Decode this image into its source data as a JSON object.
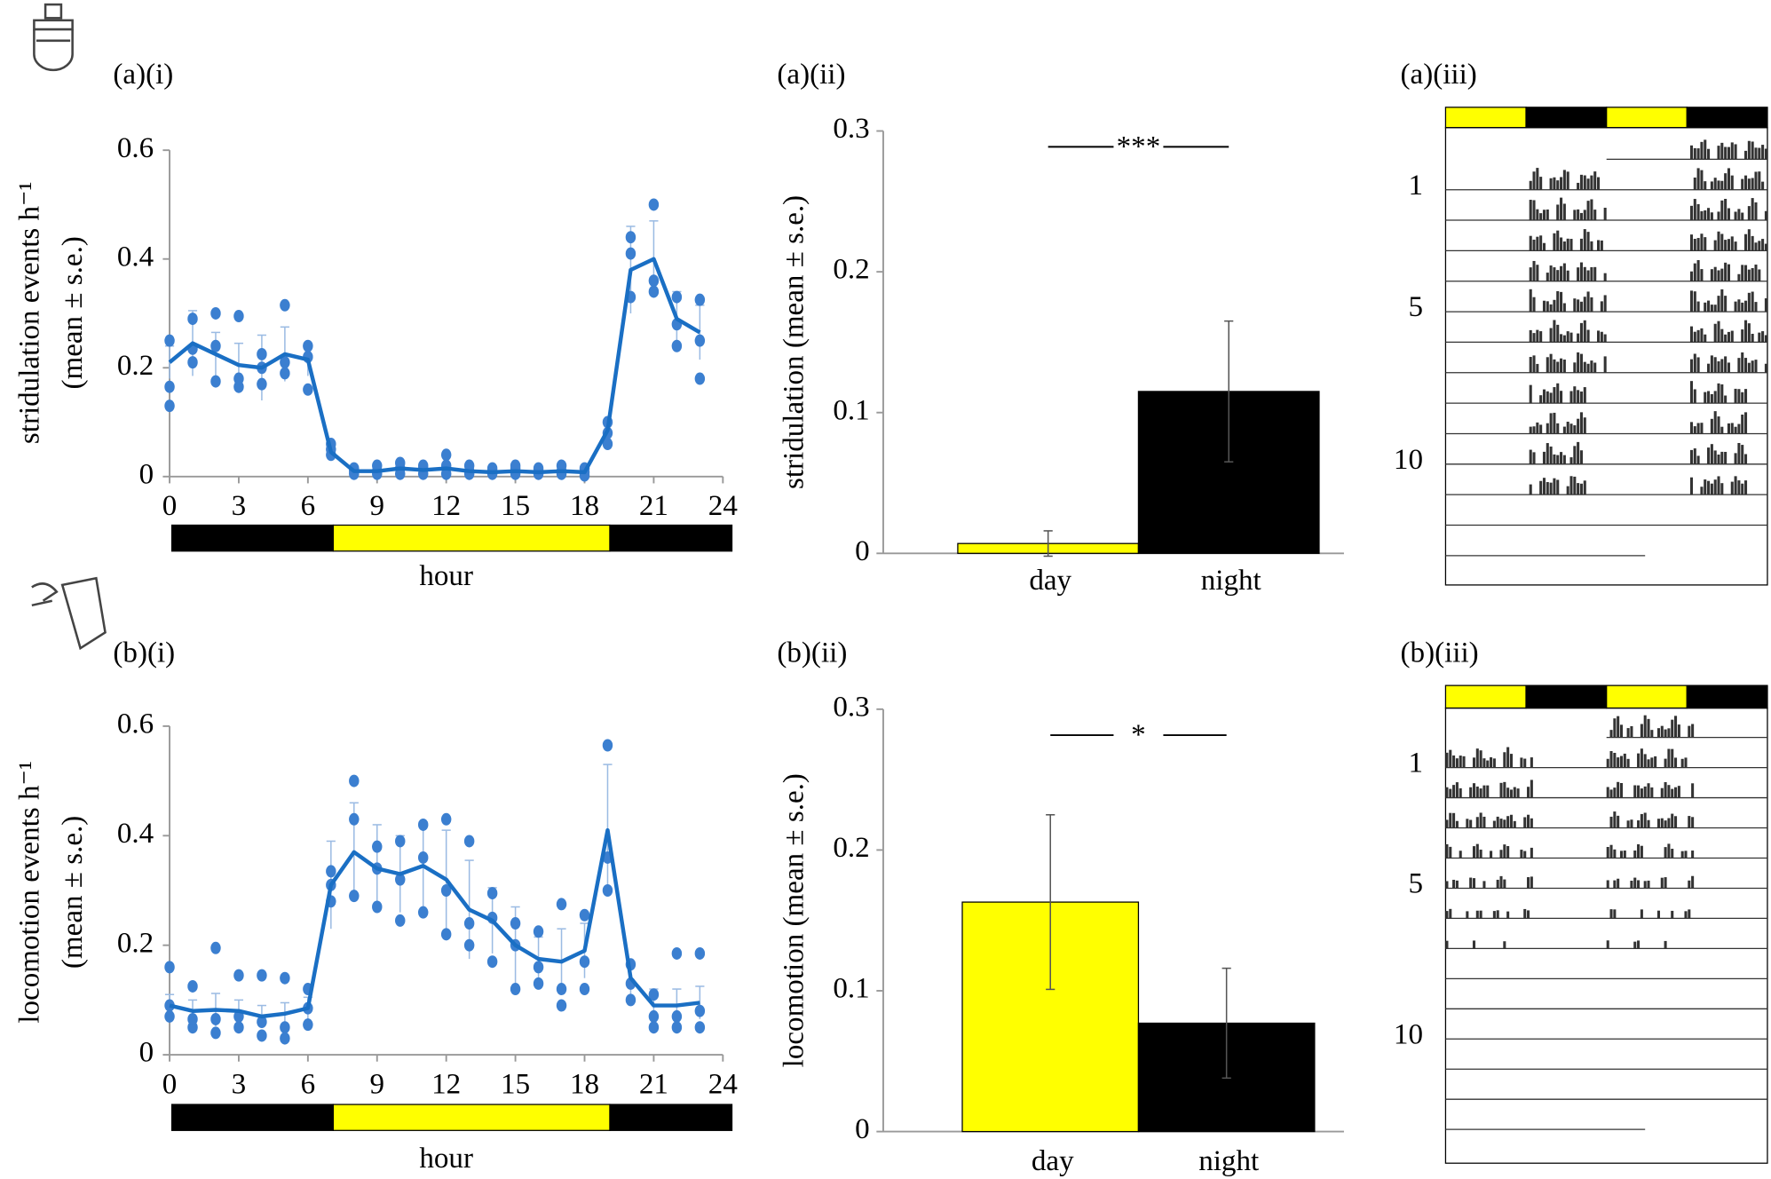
{
  "chart_data": [
    {
      "type": "line",
      "label": "(a)(i)",
      "ylabel": [
        "stridulation events h⁻¹",
        "(mean ± s.e.)"
      ],
      "xlabel": "hour",
      "x": [
        0,
        1,
        2,
        3,
        4,
        5,
        6,
        7,
        8,
        9,
        10,
        11,
        12,
        13,
        14,
        15,
        16,
        17,
        18,
        19,
        20,
        21,
        22,
        23
      ],
      "values": [
        0.21,
        0.245,
        0.225,
        0.205,
        0.2,
        0.225,
        0.215,
        0.045,
        0.01,
        0.01,
        0.015,
        0.012,
        0.015,
        0.01,
        0.008,
        0.01,
        0.008,
        0.01,
        0.008,
        0.085,
        0.38,
        0.4,
        0.29,
        0.265
      ],
      "errors": [
        0.03,
        0.06,
        0.04,
        0.04,
        0.06,
        0.05,
        0.03,
        0.01,
        0.005,
        0.005,
        0.005,
        0.005,
        0.01,
        0.005,
        0.005,
        0.005,
        0.005,
        0.005,
        0.005,
        0.02,
        0.08,
        0.07,
        0.05,
        0.05
      ],
      "points": [
        [
          0.13,
          0.165,
          0.25
        ],
        [
          0.21,
          0.235,
          0.29
        ],
        [
          0.175,
          0.24,
          0.3
        ],
        [
          0.165,
          0.18,
          0.295
        ],
        [
          0.17,
          0.2,
          0.225
        ],
        [
          0.19,
          0.21,
          0.315
        ],
        [
          0.16,
          0.22,
          0.24
        ],
        [
          0.04,
          0.05,
          0.06
        ],
        [
          0.005,
          0.01,
          0.015
        ],
        [
          0.005,
          0.01,
          0.02
        ],
        [
          0.005,
          0.015,
          0.025
        ],
        [
          0.005,
          0.015,
          0.02
        ],
        [
          0.005,
          0.02,
          0.04
        ],
        [
          0.005,
          0.01,
          0.02
        ],
        [
          0.005,
          0.01,
          0.015
        ],
        [
          0.005,
          0.015,
          0.02
        ],
        [
          0.005,
          0.01,
          0.015
        ],
        [
          0.005,
          0.01,
          0.02
        ],
        [
          0.002,
          0.008,
          0.015
        ],
        [
          0.06,
          0.08,
          0.1
        ],
        [
          0.33,
          0.41,
          0.44
        ],
        [
          0.34,
          0.36,
          0.5
        ],
        [
          0.24,
          0.28,
          0.33
        ],
        [
          0.18,
          0.25,
          0.325
        ]
      ],
      "color": "#1a6fc4",
      "point_color": "#3b7fd0",
      "xlim": [
        0,
        24
      ],
      "xticks": [
        0,
        3,
        6,
        9,
        12,
        15,
        18,
        21,
        24
      ],
      "ylim": [
        0,
        0.6
      ],
      "yticks": [
        0,
        0.2,
        0.4,
        0.6
      ],
      "light_schedule": [
        {
          "start": 0,
          "end": 7,
          "color": "#000000"
        },
        {
          "start": 7,
          "end": 19,
          "color": "#ffff00"
        },
        {
          "start": 19,
          "end": 24,
          "color": "#000000"
        }
      ]
    },
    {
      "type": "bar",
      "label": "(a)(ii)",
      "ylabel": "stridulation (mean ± s.e.)",
      "categories": [
        "day",
        "night"
      ],
      "values": [
        0.007,
        0.115
      ],
      "errors": [
        0.009,
        0.05
      ],
      "colors": [
        "#ffff00",
        "#000000"
      ],
      "ylim": [
        0,
        0.3
      ],
      "yticks": [
        0,
        0.1,
        0.2,
        0.3
      ],
      "significance": "***"
    },
    {
      "type": "actogram",
      "label": "(a)(iii)",
      "row_labels": [
        1,
        5,
        10
      ],
      "light_bar": [
        "#ffff00",
        "#000000",
        "#ffff00",
        "#000000"
      ],
      "activity": "night"
    },
    {
      "type": "line",
      "label": "(b)(i)",
      "ylabel": [
        "locomotion events h⁻¹",
        "(mean ± s.e.)"
      ],
      "xlabel": "hour",
      "x": [
        0,
        1,
        2,
        3,
        4,
        5,
        6,
        7,
        8,
        9,
        10,
        11,
        12,
        13,
        14,
        15,
        16,
        17,
        18,
        19,
        20,
        21,
        22,
        23
      ],
      "values": [
        0.09,
        0.08,
        0.082,
        0.08,
        0.07,
        0.075,
        0.085,
        0.31,
        0.37,
        0.34,
        0.33,
        0.345,
        0.32,
        0.265,
        0.245,
        0.2,
        0.175,
        0.17,
        0.19,
        0.41,
        0.14,
        0.09,
        0.09,
        0.095
      ],
      "errors": [
        0.02,
        0.02,
        0.03,
        0.02,
        0.02,
        0.02,
        0.02,
        0.08,
        0.09,
        0.08,
        0.07,
        0.08,
        0.09,
        0.09,
        0.06,
        0.07,
        0.04,
        0.06,
        0.05,
        0.12,
        0.03,
        0.03,
        0.03,
        0.03
      ],
      "points": [
        [
          0.07,
          0.09,
          0.16
        ],
        [
          0.05,
          0.065,
          0.125
        ],
        [
          0.04,
          0.065,
          0.195
        ],
        [
          0.05,
          0.07,
          0.145
        ],
        [
          0.035,
          0.06,
          0.145
        ],
        [
          0.03,
          0.05,
          0.14
        ],
        [
          0.055,
          0.085,
          0.12
        ],
        [
          0.28,
          0.31,
          0.335
        ],
        [
          0.29,
          0.43,
          0.5
        ],
        [
          0.27,
          0.34,
          0.38
        ],
        [
          0.245,
          0.32,
          0.39
        ],
        [
          0.26,
          0.36,
          0.42
        ],
        [
          0.22,
          0.3,
          0.43
        ],
        [
          0.2,
          0.24,
          0.39
        ],
        [
          0.17,
          0.25,
          0.295
        ],
        [
          0.12,
          0.2,
          0.24
        ],
        [
          0.13,
          0.16,
          0.225
        ],
        [
          0.09,
          0.12,
          0.275
        ],
        [
          0.12,
          0.17,
          0.255
        ],
        [
          0.3,
          0.36,
          0.565
        ],
        [
          0.1,
          0.13,
          0.165
        ],
        [
          0.05,
          0.07,
          0.11
        ],
        [
          0.05,
          0.07,
          0.185
        ],
        [
          0.05,
          0.08,
          0.185
        ]
      ],
      "color": "#1a6fc4",
      "point_color": "#3b7fd0",
      "xlim": [
        0,
        24
      ],
      "xticks": [
        0,
        3,
        6,
        9,
        12,
        15,
        18,
        21,
        24
      ],
      "ylim": [
        0,
        0.6
      ],
      "yticks": [
        0,
        0.2,
        0.4,
        0.6
      ],
      "light_schedule": [
        {
          "start": 0,
          "end": 7,
          "color": "#000000"
        },
        {
          "start": 7,
          "end": 19,
          "color": "#ffff00"
        },
        {
          "start": 19,
          "end": 24,
          "color": "#000000"
        }
      ]
    },
    {
      "type": "bar",
      "label": "(b)(ii)",
      "ylabel": "locomotion (mean ± s.e.)",
      "categories": [
        "day",
        "night"
      ],
      "values": [
        0.163,
        0.077
      ],
      "errors": [
        0.062,
        0.039
      ],
      "colors": [
        "#ffff00",
        "#000000"
      ],
      "ylim": [
        0,
        0.3
      ],
      "yticks": [
        0,
        0.1,
        0.2,
        0.3
      ],
      "significance": "*"
    },
    {
      "type": "actogram",
      "label": "(b)(iii)",
      "row_labels": [
        1,
        5,
        10
      ],
      "light_bar": [
        "#ffff00",
        "#000000",
        "#ffff00",
        "#000000"
      ],
      "activity": "day"
    }
  ]
}
